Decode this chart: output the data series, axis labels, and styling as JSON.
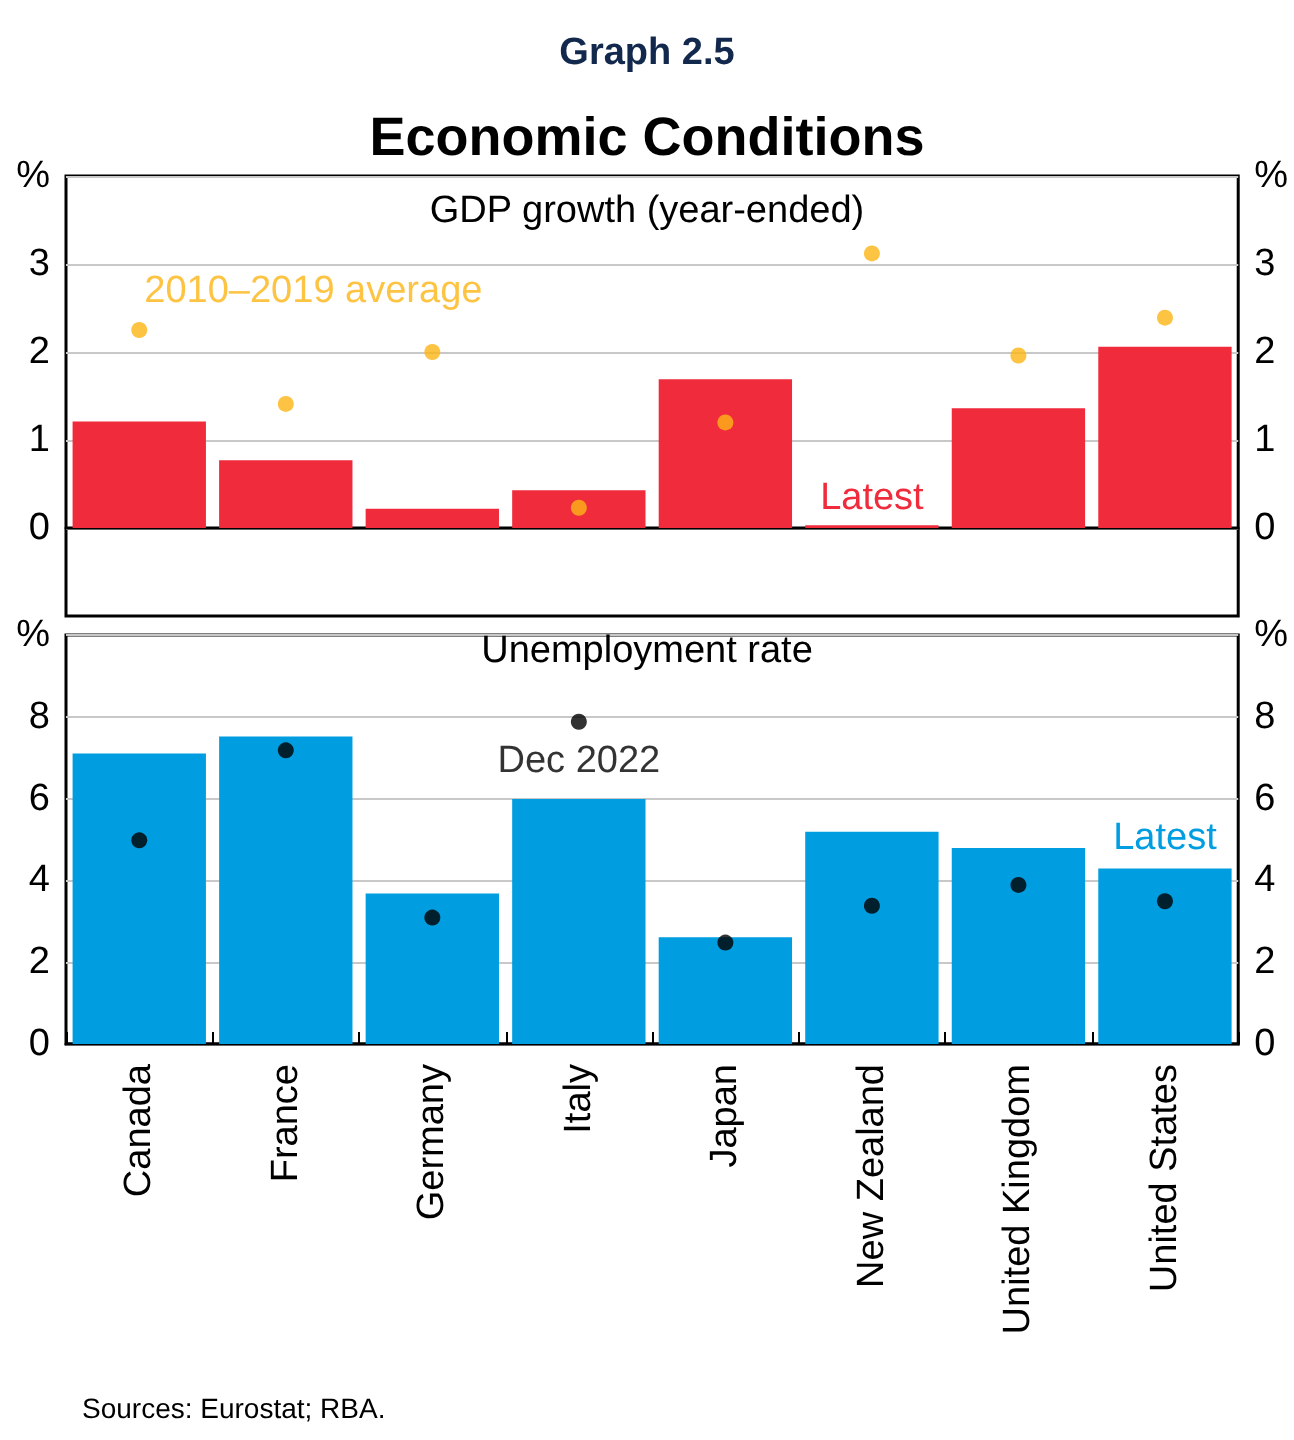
{
  "chart_data": [
    {
      "type": "bar",
      "title": "Economic Conditions",
      "subtitle": "GDP growth (year-ended)",
      "annotations": [
        "Graph 2.5"
      ],
      "categories": [
        null,
        null,
        null,
        null,
        null,
        null,
        null,
        null
      ],
      "series": [
        {
          "name": "Latest",
          "color": "#ef2b3c",
          "values": [
            1.21,
            0.77,
            0.22,
            0.43,
            1.69,
            0.03,
            1.36,
            2.06
          ]
        },
        {
          "name": "2010–2019 average",
          "type": "scatter",
          "color": "#fdb515",
          "values": [
            2.25,
            1.41,
            2.0,
            0.23,
            1.2,
            3.12,
            1.96,
            2.39
          ]
        }
      ],
      "ylim": [
        -1,
        4
      ],
      "yticks": [
        0,
        1,
        2,
        3,
        {
          "value": 4,
          "label": "%"
        }
      ],
      "y2lim": [
        -1,
        4
      ],
      "y2ticks": [
        0,
        1,
        2,
        3,
        {
          "value": 4,
          "label": "%"
        }
      ],
      "grid": "y",
      "marker": "circle",
      "legend": false,
      "tick_labels": "y"
    },
    {
      "type": "bar",
      "title": "Unemployment rate",
      "annotations": [
        "Sources: Eurostat; RBA."
      ],
      "categories": [
        "Canada",
        "France",
        "Germany",
        "Italy",
        "Japan",
        "New Zealand",
        "United Kingdom",
        "United States"
      ],
      "series": [
        {
          "name": "Latest",
          "color": "#009ee0",
          "values": [
            7.1,
            7.52,
            3.68,
            5.99,
            2.61,
            5.19,
            4.79,
            4.29
          ]
        },
        {
          "name": "Dec 2022",
          "type": "scatter",
          "color": "#000000",
          "values": [
            4.98,
            7.18,
            3.09,
            7.88,
            2.48,
            3.38,
            3.89,
            3.49
          ]
        }
      ],
      "ylim": [
        0,
        10
      ],
      "yticks": [
        0,
        2,
        4,
        6,
        8,
        {
          "value": 10,
          "label": "%"
        }
      ],
      "y2lim": [
        0,
        10
      ],
      "y2ticks": [
        0,
        2,
        4,
        6,
        8,
        {
          "value": 10,
          "label": "%"
        }
      ],
      "grid": "y",
      "marker": "circle",
      "legend": false
    }
  ]
}
